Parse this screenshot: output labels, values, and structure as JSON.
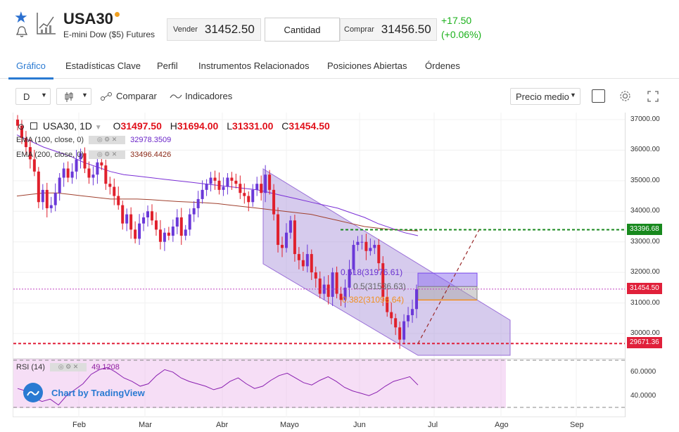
{
  "header": {
    "symbol": "USA30",
    "name": "E-mini Dow ($5) Futures",
    "sell_label": "Vender",
    "sell_price": "31452.50",
    "qty_label": "Cantidad",
    "buy_label": "Comprar",
    "buy_price": "31456.50",
    "change": "+17.50",
    "change_pct": "(+0.06%)",
    "colors": {
      "up": "#1bb11b",
      "accent": "#2a7ad2",
      "market_dot": "#f0a020"
    }
  },
  "tabs": [
    {
      "label": "Gráfico",
      "active": true
    },
    {
      "label": "Estadísticas Clave"
    },
    {
      "label": "Perfil"
    },
    {
      "label": "Instrumentos Relacionados"
    },
    {
      "label": "Posiciones Abiertas"
    },
    {
      "label": "Órdenes"
    }
  ],
  "toolbar": {
    "interval": "D",
    "compare": "Comparar",
    "indicators": "Indicadores",
    "price_mode": "Precio medio"
  },
  "legend": {
    "title": "USA30, 1D",
    "o_label": "O",
    "o": "31497.50",
    "h_label": "H",
    "h": "31694.00",
    "l_label": "L",
    "l": "31331.00",
    "c_label": "C",
    "c": "31454.50",
    "ma1_label": "EMA (100, close, 0)",
    "ma1_value": "32978.3509",
    "ma2_label": "EMA (200, close, 0)",
    "ma2_value": "33496.4426"
  },
  "fib": {
    "f618": "0.618(31976.61)",
    "f5": "0.5(31536.63)",
    "f382": "0.382(31096.64)"
  },
  "price_tags": {
    "top": "33396.68",
    "current": "31454.50",
    "bottom": "29671.36"
  },
  "rsi": {
    "label": "RSI (14)",
    "value": "49.1208",
    "levels": [
      "60.0000",
      "40.0000"
    ]
  },
  "watermark": "Chart by TradingView",
  "chart_data": {
    "type": "candlestick",
    "symbol": "USA30",
    "interval": "1D",
    "y_ticks": [
      37000,
      36000,
      35000,
      34000,
      33000,
      32000,
      31000,
      30000
    ],
    "ylim": [
      28800,
      37150
    ],
    "x_ticks": [
      "Feb",
      "Mar",
      "Abr",
      "Mayo",
      "Jun",
      "Jul",
      "Ago",
      "Sep"
    ],
    "horizontal_lines": [
      33396.68,
      31454.5,
      29671.36
    ],
    "fibonacci": [
      {
        "level": 0.618,
        "price": 31976.61
      },
      {
        "level": 0.5,
        "price": 31536.63
      },
      {
        "level": 0.382,
        "price": 31096.64
      }
    ],
    "closes": [
      36800,
      36400,
      36100,
      35700,
      35300,
      34300,
      34700,
      34100,
      34200,
      34600,
      35100,
      35400,
      35100,
      35300,
      35700,
      35900,
      35400,
      35100,
      35200,
      35600,
      35500,
      34900,
      34800,
      34500,
      34200,
      33600,
      33900,
      33400,
      33100,
      33600,
      33800,
      34000,
      33700,
      33400,
      33000,
      33300,
      33200,
      33500,
      33800,
      33200,
      33400,
      33900,
      34100,
      34400,
      34700,
      34900,
      35100,
      35000,
      34700,
      34800,
      35100,
      35000,
      34900,
      34600,
      34500,
      34300,
      34700,
      34900,
      34600,
      35200,
      34700,
      33900,
      32900,
      32800,
      33300,
      33700,
      32600,
      32400,
      32200,
      32600,
      32000,
      31800,
      31300,
      31600,
      31200,
      32000,
      31300,
      31100,
      31500,
      32100,
      32900,
      33000,
      33000,
      32700,
      32800,
      32900,
      32300,
      31200,
      30700,
      30500,
      30200,
      29800,
      30400,
      30600,
      30800,
      31450
    ],
    "ema100": [
      36500,
      36300,
      36100,
      35950,
      35800,
      35600,
      35450,
      35300,
      35200,
      35150,
      35100,
      35050,
      35000,
      34950,
      34900,
      34850,
      34800,
      34750,
      34700,
      34600,
      34500,
      34400,
      34300,
      34200,
      34100,
      33950,
      33800,
      33600,
      33450,
      33300,
      33200
    ],
    "ema200": [
      34500,
      34550,
      34600,
      34600,
      34550,
      34500,
      34450,
      34400,
      34400,
      34400,
      34380,
      34350,
      34320,
      34300,
      34280,
      34250,
      34200,
      34150,
      34100,
      34050,
      34000,
      33950,
      33900,
      33800,
      33700,
      33600,
      33500,
      33450,
      33400,
      33380,
      33360
    ],
    "rsi": [
      46,
      44,
      38,
      35,
      37,
      32,
      40,
      45,
      50,
      58,
      62,
      64,
      60,
      55,
      52,
      48,
      50,
      57,
      62,
      60,
      55,
      52,
      50,
      48,
      45,
      47,
      52,
      55,
      50,
      46,
      48,
      53,
      57,
      59,
      55,
      51,
      49,
      53,
      56,
      52,
      47,
      44,
      42,
      40,
      43,
      48,
      52,
      54,
      56,
      49
    ]
  }
}
